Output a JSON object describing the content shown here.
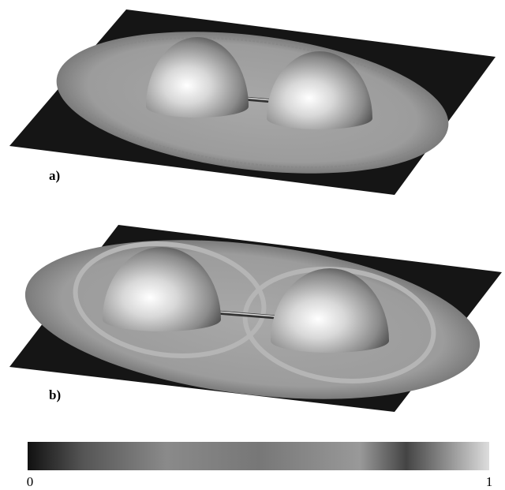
{
  "panels": [
    {
      "label": "a)"
    },
    {
      "label": "b)"
    }
  ],
  "colorbar": {
    "min": "0",
    "max": "1"
  }
}
